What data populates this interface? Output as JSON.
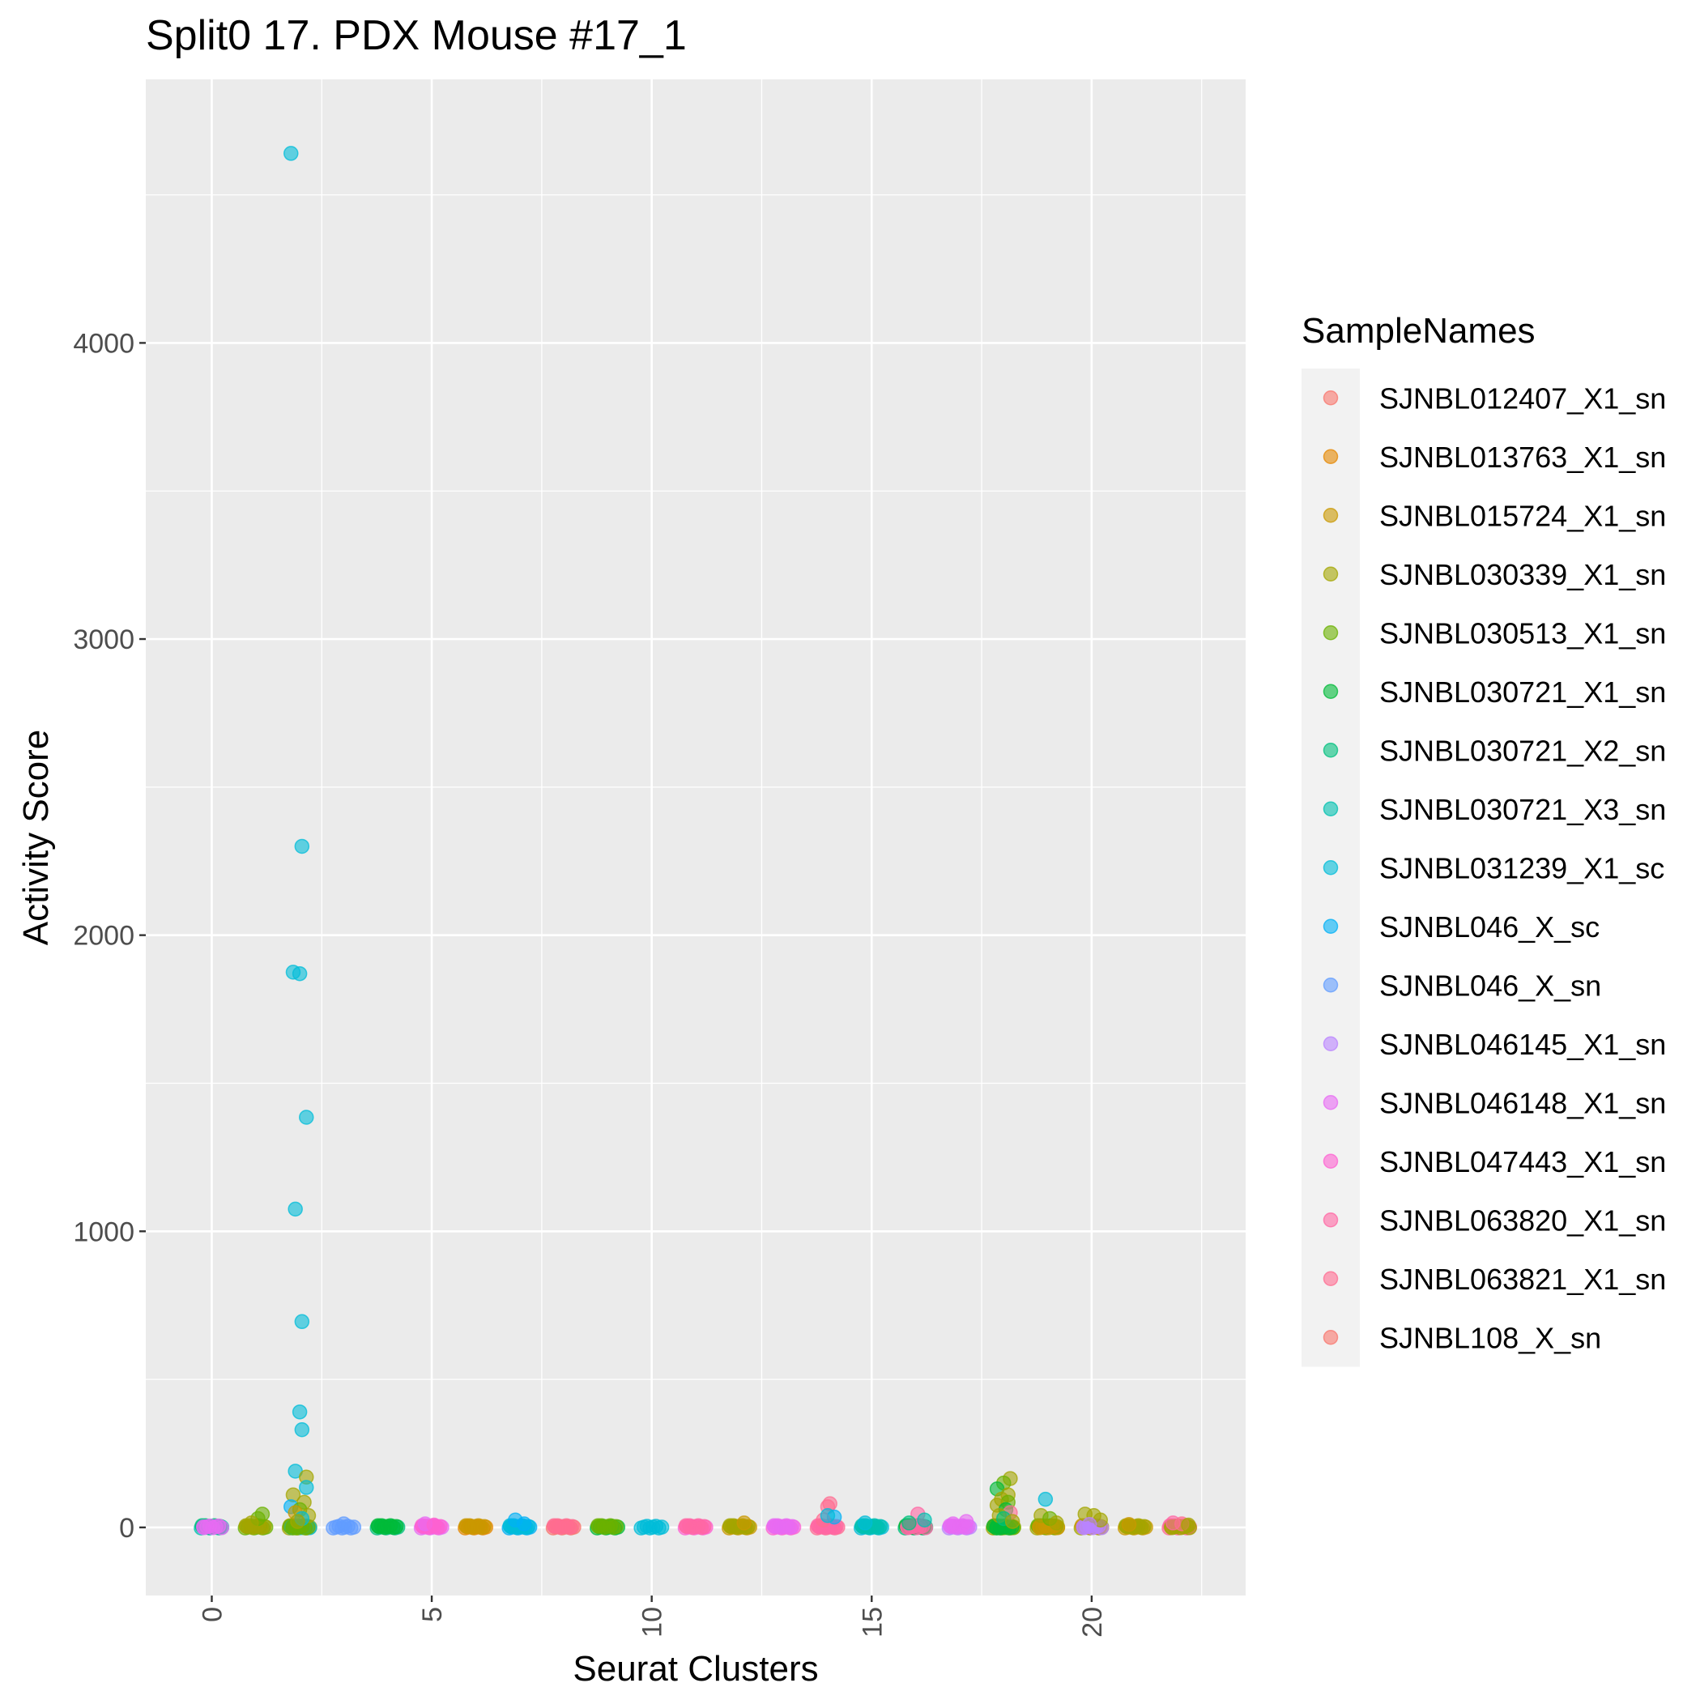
{
  "chart_data": {
    "type": "scatter",
    "title": "Split0 17. PDX Mouse #17_1",
    "xlabel": "Seurat Clusters",
    "ylabel": "Activity Score",
    "xlim": [
      -1.5,
      23.5
    ],
    "ylim": [
      -230,
      4890
    ],
    "x_ticks": [
      0,
      5,
      10,
      15,
      20
    ],
    "x_tick_labels": [
      "0",
      "5",
      "10",
      "15",
      "20"
    ],
    "y_ticks": [
      0,
      1000,
      2000,
      3000,
      4000
    ],
    "y_tick_labels": [
      "0",
      "1000",
      "2000",
      "3000",
      "4000"
    ],
    "grid": true,
    "legend_title": "SampleNames",
    "legend_position": "right",
    "series": [
      {
        "name": "SJNBL012407_X1_sn",
        "color": "#F8766D"
      },
      {
        "name": "SJNBL013763_X1_sn",
        "color": "#E58700"
      },
      {
        "name": "SJNBL015724_X1_sn",
        "color": "#C99800"
      },
      {
        "name": "SJNBL030339_X1_sn",
        "color": "#A3A500"
      },
      {
        "name": "SJNBL030513_X1_sn",
        "color": "#6BB100"
      },
      {
        "name": "SJNBL030721_X1_sn",
        "color": "#00BA38"
      },
      {
        "name": "SJNBL030721_X2_sn",
        "color": "#00BF7D"
      },
      {
        "name": "SJNBL030721_X3_sn",
        "color": "#00C0AF"
      },
      {
        "name": "SJNBL031239_X1_sc",
        "color": "#00BCD8"
      },
      {
        "name": "SJNBL046_X_sc",
        "color": "#00B0F6"
      },
      {
        "name": "SJNBL046_X_sn",
        "color": "#619CFF"
      },
      {
        "name": "SJNBL046145_X1_sn",
        "color": "#B983FF"
      },
      {
        "name": "SJNBL046148_X1_sn",
        "color": "#E76BF3"
      },
      {
        "name": "SJNBL047443_X1_sn",
        "color": "#FD61D1"
      },
      {
        "name": "SJNBL063820_X1_sn",
        "color": "#FF67A4"
      },
      {
        "name": "SJNBL063821_X1_sn",
        "color": "#FF6C91"
      },
      {
        "name": "SJNBL108_X_sn",
        "color": "#F8766D"
      }
    ],
    "points": [
      {
        "x": 1.8,
        "y": 4640,
        "s": 8
      },
      {
        "x": 2.05,
        "y": 2300,
        "s": 8
      },
      {
        "x": 1.85,
        "y": 1875,
        "s": 8
      },
      {
        "x": 2.0,
        "y": 1870,
        "s": 8
      },
      {
        "x": 2.15,
        "y": 1385,
        "s": 8
      },
      {
        "x": 1.9,
        "y": 1075,
        "s": 8
      },
      {
        "x": 2.05,
        "y": 695,
        "s": 8
      },
      {
        "x": 2.0,
        "y": 390,
        "s": 8
      },
      {
        "x": 2.05,
        "y": 330,
        "s": 8
      },
      {
        "x": 1.9,
        "y": 190,
        "s": 8
      },
      {
        "x": 2.15,
        "y": 170,
        "s": 3
      },
      {
        "x": 2.15,
        "y": 135,
        "s": 8
      },
      {
        "x": 1.85,
        "y": 110,
        "s": 3
      },
      {
        "x": 2.1,
        "y": 85,
        "s": 3
      },
      {
        "x": 1.8,
        "y": 70,
        "s": 9
      },
      {
        "x": 2.0,
        "y": 60,
        "s": 4
      },
      {
        "x": 1.9,
        "y": 50,
        "s": 2
      },
      {
        "x": 2.2,
        "y": 40,
        "s": 3
      },
      {
        "x": 2.05,
        "y": 30,
        "s": 8
      },
      {
        "x": 1.95,
        "y": 20,
        "s": 3
      },
      {
        "x": 1.15,
        "y": 45,
        "s": 4
      },
      {
        "x": 1.05,
        "y": 30,
        "s": 4
      },
      {
        "x": 0.9,
        "y": 15,
        "s": 3
      },
      {
        "x": 3.0,
        "y": 12,
        "s": 10
      },
      {
        "x": 4.85,
        "y": 12,
        "s": 12
      },
      {
        "x": 5.05,
        "y": 8,
        "s": 13
      },
      {
        "x": 6.9,
        "y": 25,
        "s": 9
      },
      {
        "x": 7.1,
        "y": 12,
        "s": 9
      },
      {
        "x": 12.1,
        "y": 15,
        "s": 2
      },
      {
        "x": 14.05,
        "y": 80,
        "s": 15
      },
      {
        "x": 14.0,
        "y": 70,
        "s": 15
      },
      {
        "x": 14.15,
        "y": 35,
        "s": 9
      },
      {
        "x": 13.9,
        "y": 25,
        "s": 15
      },
      {
        "x": 14.0,
        "y": 40,
        "s": 8
      },
      {
        "x": 14.85,
        "y": 15,
        "s": 8
      },
      {
        "x": 16.05,
        "y": 45,
        "s": 14
      },
      {
        "x": 16.2,
        "y": 25,
        "s": 7
      },
      {
        "x": 15.85,
        "y": 15,
        "s": 6
      },
      {
        "x": 17.15,
        "y": 20,
        "s": 12
      },
      {
        "x": 16.85,
        "y": 12,
        "s": 12
      },
      {
        "x": 18.15,
        "y": 165,
        "s": 3
      },
      {
        "x": 18.0,
        "y": 150,
        "s": 4
      },
      {
        "x": 17.85,
        "y": 130,
        "s": 5
      },
      {
        "x": 18.1,
        "y": 110,
        "s": 3
      },
      {
        "x": 17.95,
        "y": 95,
        "s": 3
      },
      {
        "x": 18.1,
        "y": 85,
        "s": 4
      },
      {
        "x": 17.85,
        "y": 75,
        "s": 3
      },
      {
        "x": 18.05,
        "y": 60,
        "s": 5
      },
      {
        "x": 18.15,
        "y": 50,
        "s": 15
      },
      {
        "x": 17.9,
        "y": 40,
        "s": 3
      },
      {
        "x": 18.0,
        "y": 30,
        "s": 6
      },
      {
        "x": 18.2,
        "y": 20,
        "s": 3
      },
      {
        "x": 18.95,
        "y": 95,
        "s": 8
      },
      {
        "x": 18.85,
        "y": 40,
        "s": 3
      },
      {
        "x": 19.05,
        "y": 30,
        "s": 4
      },
      {
        "x": 19.2,
        "y": 15,
        "s": 3
      },
      {
        "x": 19.85,
        "y": 45,
        "s": 3
      },
      {
        "x": 20.05,
        "y": 40,
        "s": 3
      },
      {
        "x": 20.2,
        "y": 25,
        "s": 3
      },
      {
        "x": 19.95,
        "y": 10,
        "s": 11
      },
      {
        "x": 20.85,
        "y": 10,
        "s": 2
      },
      {
        "x": 21.85,
        "y": 15,
        "s": 14
      },
      {
        "x": 22.05,
        "y": 12,
        "s": 15
      },
      {
        "x": 22.2,
        "y": 8,
        "s": 3
      }
    ],
    "clusters": [
      {
        "x": 0,
        "s": [
          7,
          6,
          12
        ]
      },
      {
        "x": 1,
        "s": [
          4,
          3
        ]
      },
      {
        "x": 2,
        "s": [
          3,
          2,
          8,
          4
        ]
      },
      {
        "x": 3,
        "s": [
          10
        ]
      },
      {
        "x": 4,
        "s": [
          6,
          5
        ]
      },
      {
        "x": 5,
        "s": [
          12,
          13
        ]
      },
      {
        "x": 6,
        "s": [
          1,
          2
        ]
      },
      {
        "x": 7,
        "s": [
          9,
          8
        ]
      },
      {
        "x": 8,
        "s": [
          0,
          15
        ]
      },
      {
        "x": 9,
        "s": [
          5,
          4
        ]
      },
      {
        "x": 10,
        "s": [
          8
        ]
      },
      {
        "x": 11,
        "s": [
          13,
          14
        ]
      },
      {
        "x": 12,
        "s": [
          2,
          3
        ]
      },
      {
        "x": 13,
        "s": [
          13,
          12
        ]
      },
      {
        "x": 14,
        "s": [
          15,
          14
        ]
      },
      {
        "x": 15,
        "s": [
          8,
          7
        ]
      },
      {
        "x": 16,
        "s": [
          6,
          5,
          14
        ]
      },
      {
        "x": 17,
        "s": [
          11,
          12
        ]
      },
      {
        "x": 18,
        "s": [
          3,
          2,
          4,
          5
        ]
      },
      {
        "x": 19,
        "s": [
          3,
          4,
          2
        ]
      },
      {
        "x": 20,
        "s": [
          3,
          2,
          11
        ]
      },
      {
        "x": 21,
        "s": [
          2,
          3
        ]
      },
      {
        "x": 22,
        "s": [
          15,
          14,
          3
        ]
      }
    ]
  }
}
